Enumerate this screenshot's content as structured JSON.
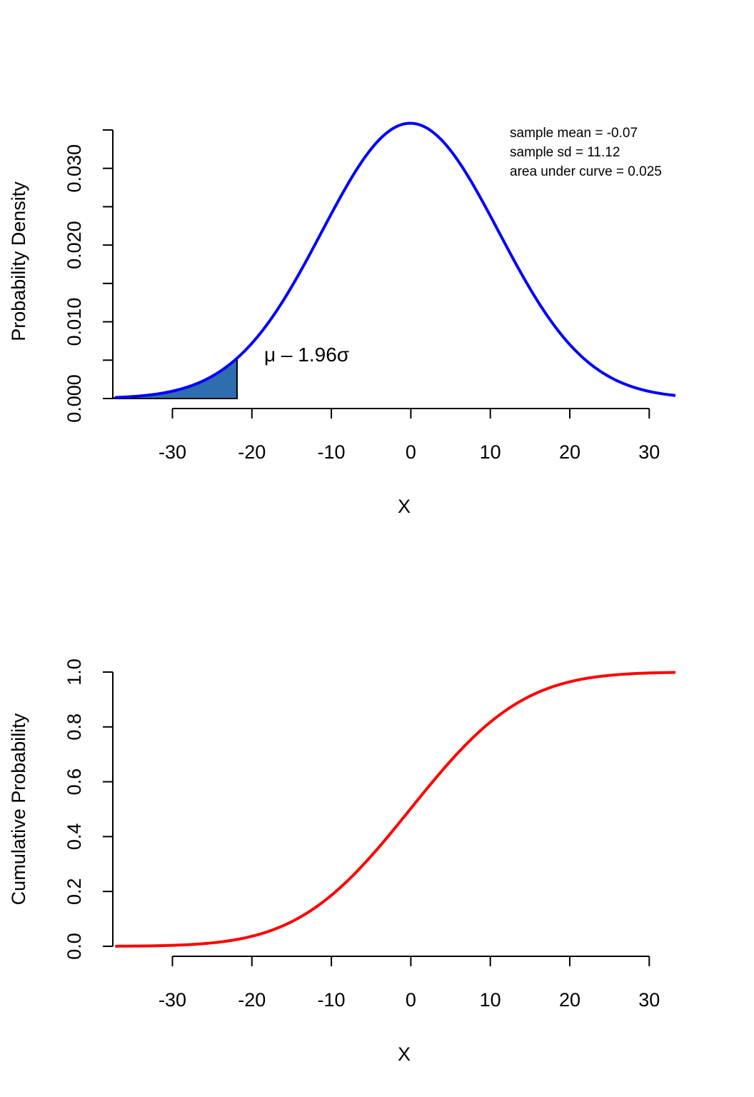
{
  "chart_data": [
    {
      "type": "line",
      "title": "",
      "xlabel": "X",
      "ylabel": "Probability Density",
      "xlim": [
        -37.5,
        33.3
      ],
      "ylim": [
        0,
        0.035
      ],
      "x_ticks": [
        -30,
        -20,
        -10,
        0,
        10,
        20,
        30
      ],
      "x_tick_labels": [
        "-30",
        "-20",
        "-10",
        "0",
        "10",
        "20",
        "30"
      ],
      "y_ticks": [
        0,
        0.005,
        0.01,
        0.015,
        0.02,
        0.025,
        0.03,
        0.035
      ],
      "y_tick_labels": [
        "0.000",
        "",
        "0.010",
        "",
        "0.020",
        "",
        "0.030",
        ""
      ],
      "grid": false,
      "series": [
        {
          "distribution": "normal",
          "mean": -0.07,
          "sd": 11.12,
          "x_range": [
            -37.2,
            33.3
          ],
          "color": "#0000ff"
        }
      ],
      "shaded_region": {
        "x_from": -37.2,
        "x_to": -21.87,
        "fill": "#2f6eae",
        "stroke": "#000000"
      },
      "annotations": {
        "threshold_label": "μ – 1.96σ",
        "stats": [
          "sample mean = -0.07",
          "sample sd = 11.12",
          "area under curve = 0.025"
        ]
      }
    },
    {
      "type": "line",
      "title": "",
      "xlabel": "X",
      "ylabel": "Cumulative Probability",
      "xlim": [
        -37.5,
        33.3
      ],
      "ylim": [
        0,
        1
      ],
      "x_ticks": [
        -30,
        -20,
        -10,
        0,
        10,
        20,
        30
      ],
      "x_tick_labels": [
        "-30",
        "-20",
        "-10",
        "0",
        "10",
        "20",
        "30"
      ],
      "y_ticks": [
        0,
        0.2,
        0.4,
        0.6,
        0.8,
        1.0
      ],
      "y_tick_labels": [
        "0.0",
        "0.2",
        "0.4",
        "0.6",
        "0.8",
        "1.0"
      ],
      "grid": false,
      "series": [
        {
          "distribution": "normal-cdf",
          "mean": -0.07,
          "sd": 11.12,
          "x_range": [
            -37.2,
            33.3
          ],
          "color": "#ff0000"
        }
      ]
    }
  ]
}
